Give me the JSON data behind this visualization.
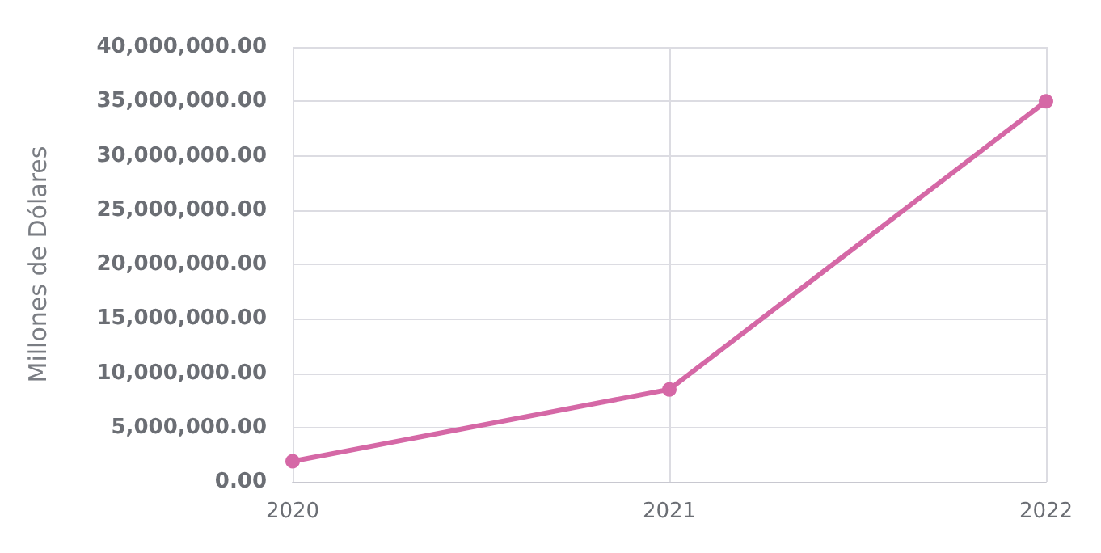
{
  "chart_data": {
    "type": "line",
    "ylabel": "Millones de Dólares",
    "categories": [
      "2020",
      "2021",
      "2022"
    ],
    "series": [
      {
        "color": "#d568a6",
        "values": [
          1900000,
          8500000,
          35000000
        ]
      }
    ],
    "ylim": [
      0,
      40000000
    ],
    "yticks": [
      {
        "value": 0,
        "label": "0.00"
      },
      {
        "value": 5000000,
        "label": "5,000,000.00"
      },
      {
        "value": 10000000,
        "label": "10,000,000.00"
      },
      {
        "value": 15000000,
        "label": "15,000,000.00"
      },
      {
        "value": 20000000,
        "label": "20,000,000.00"
      },
      {
        "value": 25000000,
        "label": "25,000,000.00"
      },
      {
        "value": 30000000,
        "label": "30,000,000.00"
      },
      {
        "value": 35000000,
        "label": "35,000,000.00"
      },
      {
        "value": 40000000,
        "label": "40,000,000.00"
      }
    ],
    "grid": true,
    "marker": "circle",
    "line_style": "solid"
  }
}
